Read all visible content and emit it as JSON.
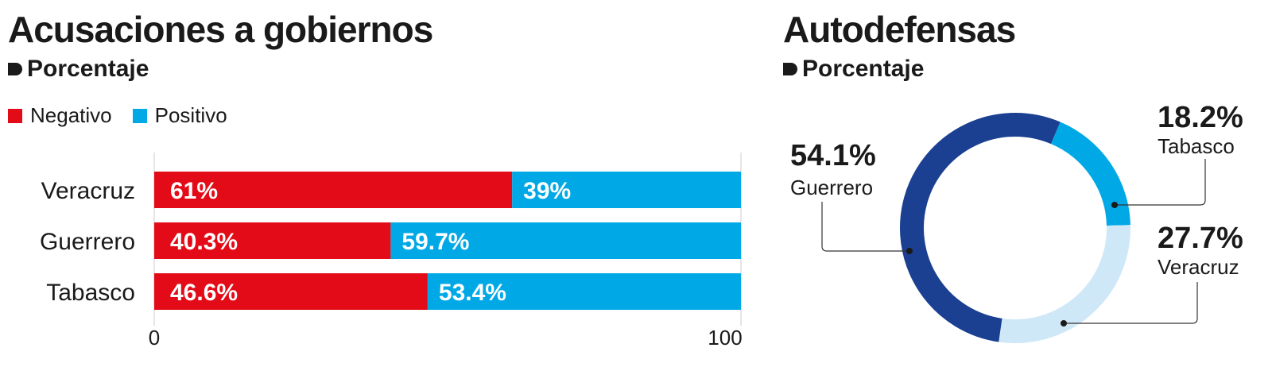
{
  "left_panel": {
    "title": "Acusaciones a gobiernos",
    "subtitle": "Porcentaje",
    "legend": [
      {
        "label": "Negativo",
        "color": "#e30b17"
      },
      {
        "label": "Positivo",
        "color": "#00a9e6"
      }
    ]
  },
  "right_panel": {
    "title": "Autodefensas",
    "subtitle": "Porcentaje"
  },
  "chart_data": [
    {
      "type": "bar",
      "orientation": "horizontal",
      "stacked": true,
      "categories": [
        "Veracruz",
        "Guerrero",
        "Tabasco"
      ],
      "series": [
        {
          "name": "Negativo",
          "color": "#e30b17",
          "values": [
            61,
            40.3,
            46.6
          ],
          "labels": [
            "61%",
            "40.3%",
            "46.6%"
          ]
        },
        {
          "name": "Positivo",
          "color": "#00a9e6",
          "values": [
            39,
            59.7,
            53.4
          ],
          "labels": [
            "39%",
            "59.7%",
            "53.4%"
          ]
        }
      ],
      "xlim": [
        0,
        100
      ],
      "xticks": [
        "0",
        "100"
      ],
      "legend_position": "top-left"
    },
    {
      "type": "pie",
      "donut": true,
      "slices": [
        {
          "name": "Tabasco",
          "value": 18.2,
          "label": "18.2%",
          "color": "#00a9e6"
        },
        {
          "name": "Veracruz",
          "value": 27.7,
          "label": "27.7%",
          "color": "#cfe8f8"
        },
        {
          "name": "Guerrero",
          "value": 54.1,
          "label": "54.1%",
          "color": "#1b3f91"
        }
      ]
    }
  ]
}
